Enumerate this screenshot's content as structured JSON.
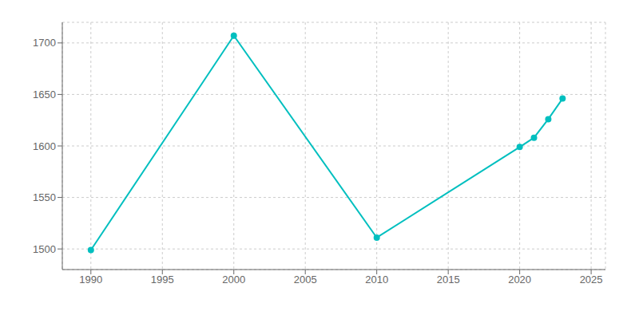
{
  "chart_data": {
    "type": "line",
    "x": [
      1990,
      2000,
      2010,
      2020,
      2021,
      2022,
      2023
    ],
    "values": [
      1499,
      1707,
      1511,
      1599,
      1608,
      1626,
      1646
    ],
    "color": "#00BFBF",
    "marker": "o",
    "xlim": [
      1988,
      2026
    ],
    "ylim": [
      1480,
      1720
    ],
    "xticks": [
      1990,
      1995,
      2000,
      2005,
      2010,
      2015,
      2020,
      2025
    ],
    "yticks": [
      1500,
      1550,
      1600,
      1650,
      1700
    ],
    "grid": true
  }
}
